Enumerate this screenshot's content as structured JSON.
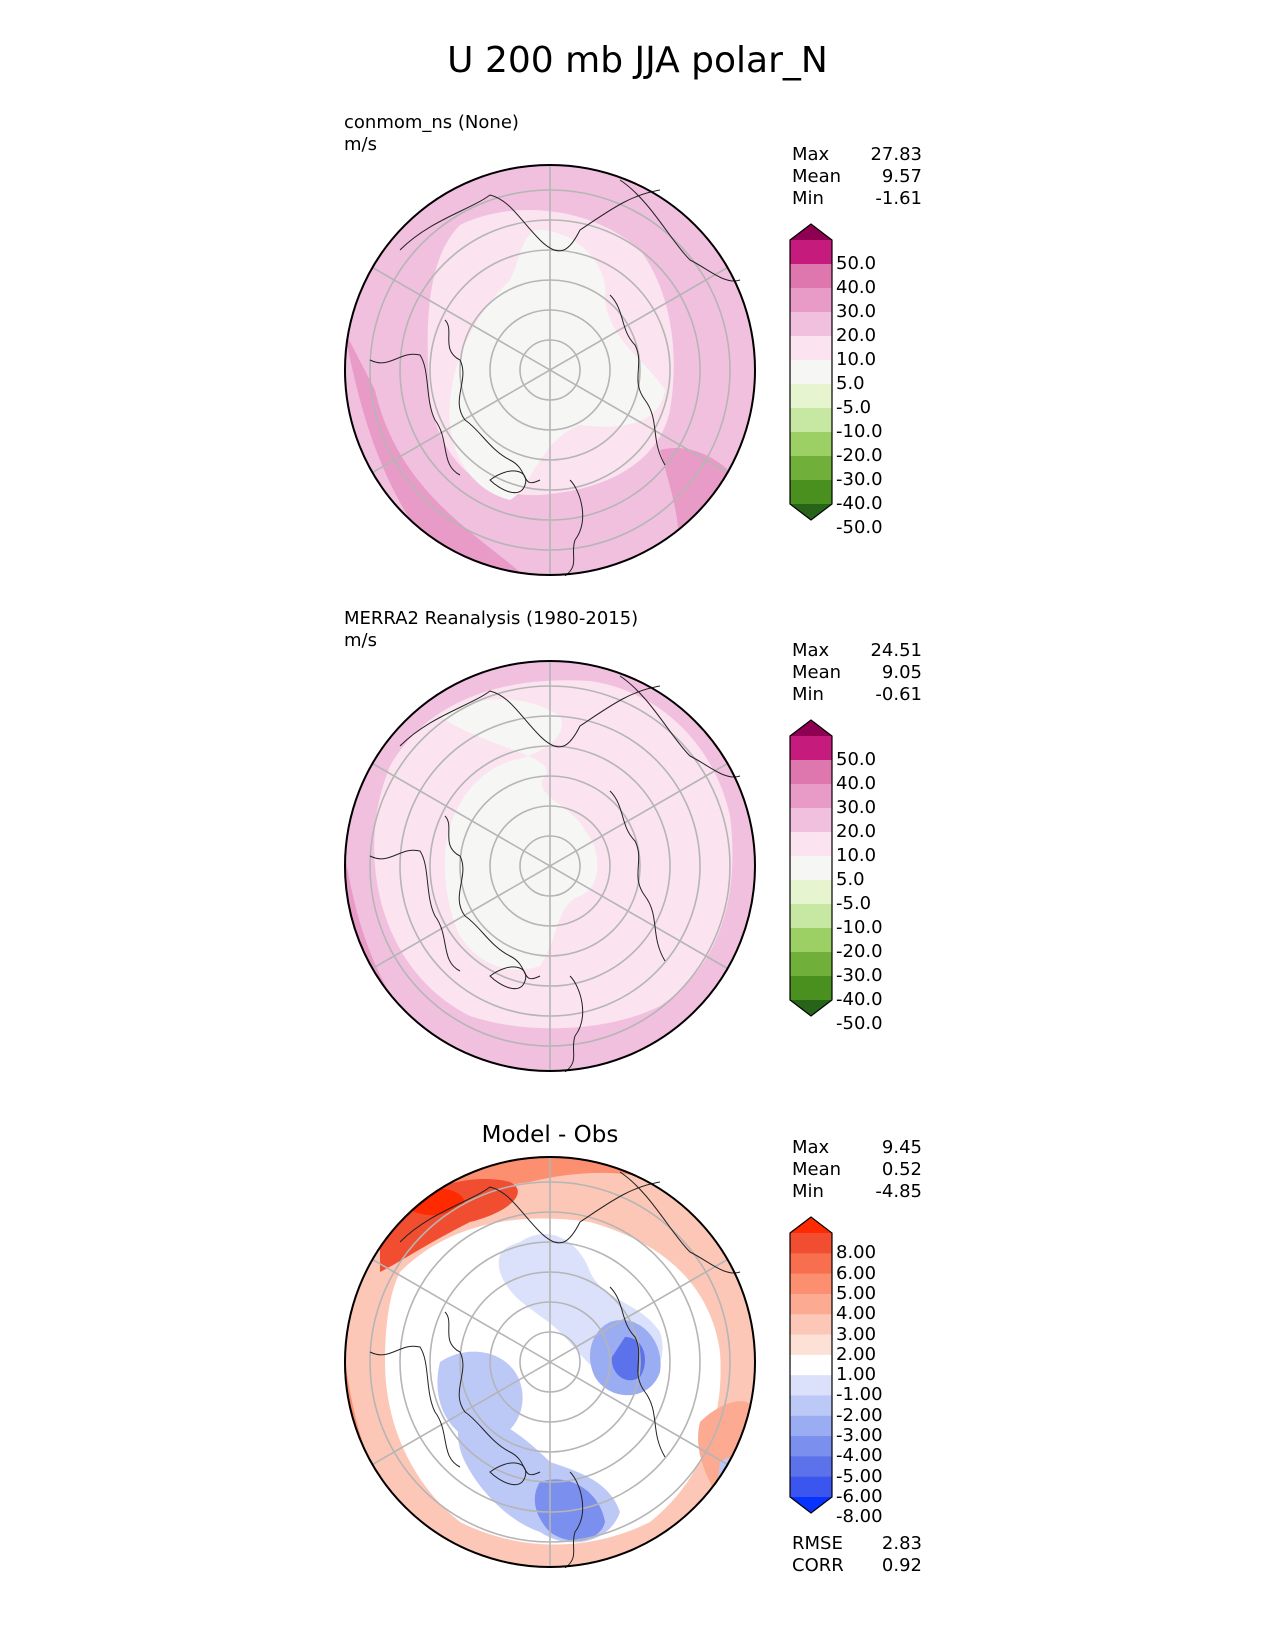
{
  "title": "U 200 mb JJA polar_N",
  "panels": [
    {
      "id": "test",
      "label": "conmom_ns (None)",
      "units": "m/s",
      "stats": [
        {
          "key": "Max",
          "value": "27.83"
        },
        {
          "key": "Mean",
          "value": "9.57"
        },
        {
          "key": "Min",
          "value": "-1.61"
        }
      ]
    },
    {
      "id": "ref",
      "label": "MERRA2 Reanalysis (1980-2015)",
      "units": "m/s",
      "stats": [
        {
          "key": "Max",
          "value": "24.51"
        },
        {
          "key": "Mean",
          "value": "9.05"
        },
        {
          "key": "Min",
          "value": "-0.61"
        }
      ]
    },
    {
      "id": "diff",
      "title": "Model - Obs",
      "stats": [
        {
          "key": "Max",
          "value": "9.45"
        },
        {
          "key": "Mean",
          "value": "0.52"
        },
        {
          "key": "Min",
          "value": "-4.85"
        }
      ],
      "metrics": [
        {
          "key": "RMSE",
          "value": "2.83"
        },
        {
          "key": "CORR",
          "value": "0.92"
        }
      ]
    }
  ],
  "colorbars": {
    "field": {
      "labels": [
        "50.0",
        "40.0",
        "30.0",
        "20.0",
        "10.0",
        "5.0",
        "-5.0",
        "-10.0",
        "-20.0",
        "-30.0",
        "-40.0",
        "-50.0"
      ],
      "colors_top_to_bottom": [
        "#8e0152",
        "#c51b7d",
        "#de77ae",
        "#e99bc8",
        "#f1c0df",
        "#fbe3ef",
        "#f6f6f4",
        "#e6f5d0",
        "#c7e8a3",
        "#9ccf64",
        "#6faf3a",
        "#4a901f",
        "#276419"
      ]
    },
    "diff": {
      "labels": [
        "8.00",
        "6.00",
        "5.00",
        "4.00",
        "3.00",
        "2.00",
        "1.00",
        "-1.00",
        "-2.00",
        "-3.00",
        "-4.00",
        "-5.00",
        "-6.00",
        "-8.00"
      ],
      "colors_top_to_bottom": [
        "#ff2a00",
        "#f14d30",
        "#f86f50",
        "#fb8f70",
        "#fcaa92",
        "#fcc7b6",
        "#fde0d6",
        "#ffffff",
        "#dbe1fb",
        "#bcc9f7",
        "#9aadf2",
        "#7b90ee",
        "#5c72ea",
        "#3b55ef",
        "#0732ff"
      ]
    }
  }
}
